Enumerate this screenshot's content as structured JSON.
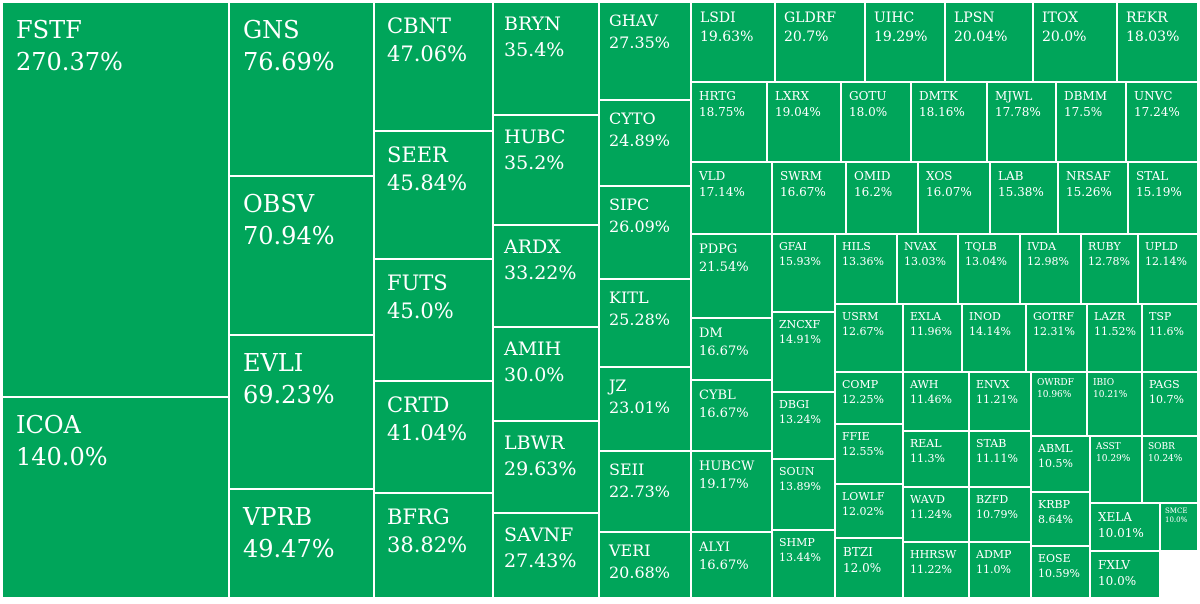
{
  "chart_data": {
    "type": "treemap",
    "color": "#00a55a",
    "border_color": "#ffffff",
    "text_color": "#ffffff",
    "items": [
      {
        "label": "FSTF",
        "value": "270.37%"
      },
      {
        "label": "ICOA",
        "value": "140.0%"
      },
      {
        "label": "GNS",
        "value": "76.69%"
      },
      {
        "label": "OBSV",
        "value": "70.94%"
      },
      {
        "label": "EVLI",
        "value": "69.23%"
      },
      {
        "label": "VPRB",
        "value": "49.47%"
      },
      {
        "label": "CBNT",
        "value": "47.06%"
      },
      {
        "label": "SEER",
        "value": "45.84%"
      },
      {
        "label": "FUTS",
        "value": "45.0%"
      },
      {
        "label": "CRTD",
        "value": "41.04%"
      },
      {
        "label": "BFRG",
        "value": "38.82%"
      },
      {
        "label": "BRYN",
        "value": "35.4%"
      },
      {
        "label": "HUBC",
        "value": "35.2%"
      },
      {
        "label": "ARDX",
        "value": "33.22%"
      },
      {
        "label": "AMIH",
        "value": "30.0%"
      },
      {
        "label": "LBWR",
        "value": "29.63%"
      },
      {
        "label": "SAVNF",
        "value": "27.43%"
      },
      {
        "label": "GHAV",
        "value": "27.35%"
      },
      {
        "label": "CYTO",
        "value": "24.89%"
      },
      {
        "label": "SIPC",
        "value": "26.09%"
      },
      {
        "label": "KITL",
        "value": "25.28%"
      },
      {
        "label": "JZ",
        "value": "23.01%"
      },
      {
        "label": "SEII",
        "value": "22.73%"
      },
      {
        "label": "VERI",
        "value": "20.68%"
      },
      {
        "label": "LSDI",
        "value": "19.63%"
      },
      {
        "label": "GLDRF",
        "value": "20.7%"
      },
      {
        "label": "UIHC",
        "value": "19.29%"
      },
      {
        "label": "LPSN",
        "value": "20.04%"
      },
      {
        "label": "ITOX",
        "value": "20.0%"
      },
      {
        "label": "REKR",
        "value": "18.03%"
      },
      {
        "label": "HRTG",
        "value": "18.75%"
      },
      {
        "label": "LXRX",
        "value": "19.04%"
      },
      {
        "label": "GOTU",
        "value": "18.0%"
      },
      {
        "label": "DMTK",
        "value": "18.16%"
      },
      {
        "label": "MJWL",
        "value": "17.78%"
      },
      {
        "label": "DBMM",
        "value": "17.5%"
      },
      {
        "label": "UNVC",
        "value": "17.24%"
      },
      {
        "label": "VLD",
        "value": "17.14%"
      },
      {
        "label": "SWRM",
        "value": "16.67%"
      },
      {
        "label": "OMID",
        "value": "16.2%"
      },
      {
        "label": "XOS",
        "value": "16.07%"
      },
      {
        "label": "LAB",
        "value": "15.38%"
      },
      {
        "label": "NRSAF",
        "value": "15.26%"
      },
      {
        "label": "STAL",
        "value": "15.19%"
      },
      {
        "label": "PDPG",
        "value": "21.54%"
      },
      {
        "label": "DM",
        "value": "16.67%"
      },
      {
        "label": "CYBL",
        "value": "16.67%"
      },
      {
        "label": "HUBCW",
        "value": "19.17%"
      },
      {
        "label": "ALYI",
        "value": "16.67%"
      },
      {
        "label": "GFAI",
        "value": "15.93%"
      },
      {
        "label": "ZNCXF",
        "value": "14.91%"
      },
      {
        "label": "DBGI",
        "value": "13.24%"
      },
      {
        "label": "SOUN",
        "value": "13.89%"
      },
      {
        "label": "SHMP",
        "value": "13.44%"
      },
      {
        "label": "HILS",
        "value": "13.36%"
      },
      {
        "label": "NVAX",
        "value": "13.03%"
      },
      {
        "label": "TQLB",
        "value": "13.04%"
      },
      {
        "label": "IVDA",
        "value": "12.98%"
      },
      {
        "label": "RUBY",
        "value": "12.78%"
      },
      {
        "label": "UPLD",
        "value": "12.14%"
      },
      {
        "label": "USRM",
        "value": "12.67%"
      },
      {
        "label": "EXLA",
        "value": "11.96%"
      },
      {
        "label": "INOD",
        "value": "14.14%"
      },
      {
        "label": "GOTRF",
        "value": "12.31%"
      },
      {
        "label": "LAZR",
        "value": "11.52%"
      },
      {
        "label": "TSP",
        "value": "11.6%"
      },
      {
        "label": "COMP",
        "value": "12.25%"
      },
      {
        "label": "AWH",
        "value": "11.46%"
      },
      {
        "label": "ENVX",
        "value": "11.21%"
      },
      {
        "label": "OWRDF",
        "value": "10.96%"
      },
      {
        "label": "IBIO",
        "value": "10.21%"
      },
      {
        "label": "PAGS",
        "value": "10.7%"
      },
      {
        "label": "FFIE",
        "value": "12.55%"
      },
      {
        "label": "REAL",
        "value": "11.3%"
      },
      {
        "label": "STAB",
        "value": "11.11%"
      },
      {
        "label": "ABML",
        "value": "10.5%"
      },
      {
        "label": "ASST",
        "value": "10.29%"
      },
      {
        "label": "SOBR",
        "value": "10.24%"
      },
      {
        "label": "LOWLF",
        "value": "12.02%"
      },
      {
        "label": "WAVD",
        "value": "11.24%"
      },
      {
        "label": "BZFD",
        "value": "10.79%"
      },
      {
        "label": "KRBP",
        "value": "8.64%"
      },
      {
        "label": "XELA",
        "value": "10.01%"
      },
      {
        "label": "SMCE",
        "value": "10.0%"
      },
      {
        "label": "BTZI",
        "value": "12.0%"
      },
      {
        "label": "HHRSW",
        "value": "11.22%"
      },
      {
        "label": "ADMP",
        "value": "11.0%"
      },
      {
        "label": "EOSE",
        "value": "10.59%"
      },
      {
        "label": "FXLV",
        "value": "10.0%"
      }
    ]
  }
}
